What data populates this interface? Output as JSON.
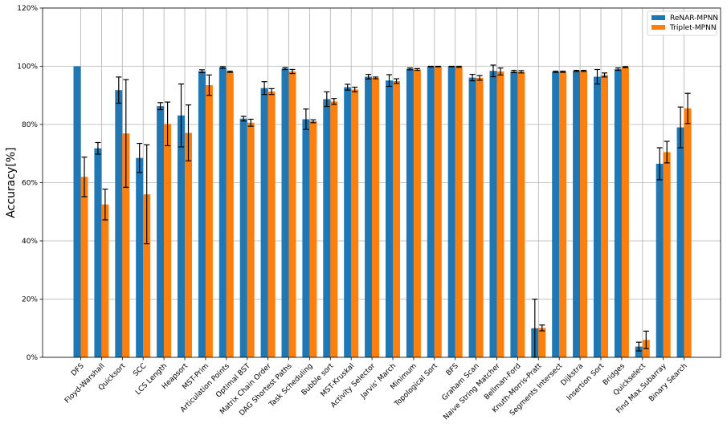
{
  "chart_data": {
    "type": "bar",
    "title": "",
    "xlabel": "",
    "ylabel": "Accuracy[%]",
    "ylim": [
      0,
      120
    ],
    "yticks": [
      0,
      20,
      40,
      60,
      80,
      100,
      120
    ],
    "ytick_suffix": "%",
    "grid": true,
    "legend_position": "top-right",
    "categories": [
      "DFS",
      "Floyd-Warshall",
      "Quicksort",
      "SCC",
      "LCS Length",
      "Heapsort",
      "MST-Prim",
      "Articulation Points",
      "Optimal BST",
      "Matrix Chain Order",
      "DAG Shortest Paths",
      "Task Scheduling",
      "Bubble sort",
      "MST-Kruskal",
      "Activity Selector",
      "Jarvis' March",
      "Minimum",
      "Topological Sort",
      "BFS",
      "Graham Scan",
      "Naive String Matcher",
      "Bellman-Ford",
      "Knuth-Morris-Pratt",
      "Segments Intersect",
      "Dijkstra",
      "Insertion Sort",
      "Bridges",
      "Quickselect",
      "Find Max.Subarray",
      "Binary Search"
    ],
    "series": [
      {
        "name": "ReNAR-MPNN",
        "color": "#1f77b4",
        "values": [
          100,
          71.8,
          91.8,
          68.5,
          86.3,
          83.1,
          98.3,
          99.6,
          82.0,
          92.5,
          99.2,
          81.8,
          88.7,
          92.8,
          96.4,
          95.1,
          99.1,
          99.9,
          99.9,
          96.1,
          98.4,
          98.2,
          10.0,
          98.1,
          98.4,
          96.4,
          99.0,
          3.7,
          66.5,
          79.0
        ],
        "errors": [
          0,
          2.0,
          4.5,
          5.0,
          1.2,
          10.8,
          0.5,
          0.3,
          0.8,
          2.2,
          0.3,
          3.5,
          2.5,
          1.0,
          0.8,
          2.0,
          0.3,
          0.1,
          0.1,
          1.1,
          2.0,
          0.4,
          10.0,
          0.2,
          0.2,
          2.5,
          0.4,
          1.5,
          5.5,
          7.0
        ]
      },
      {
        "name": "Triplet-MPNN",
        "color": "#ff7f0e",
        "values": [
          62.0,
          52.5,
          76.9,
          56.0,
          80.2,
          77.1,
          93.5,
          98.1,
          80.6,
          91.3,
          98.2,
          81.1,
          87.9,
          92.0,
          96.0,
          94.9,
          98.9,
          99.9,
          99.8,
          96.0,
          98.2,
          98.1,
          10.1,
          98.1,
          98.4,
          97.0,
          99.7,
          6.0,
          70.5,
          85.5
        ],
        "errors": [
          6.8,
          5.3,
          18.5,
          17.0,
          7.5,
          9.6,
          3.5,
          0.2,
          1.2,
          1.0,
          0.7,
          0.5,
          1.0,
          0.8,
          0.3,
          0.8,
          0.3,
          0.1,
          0.2,
          0.8,
          1.2,
          0.4,
          1.0,
          0.2,
          0.2,
          0.7,
          0.2,
          3.0,
          3.7,
          5.2
        ]
      }
    ]
  }
}
